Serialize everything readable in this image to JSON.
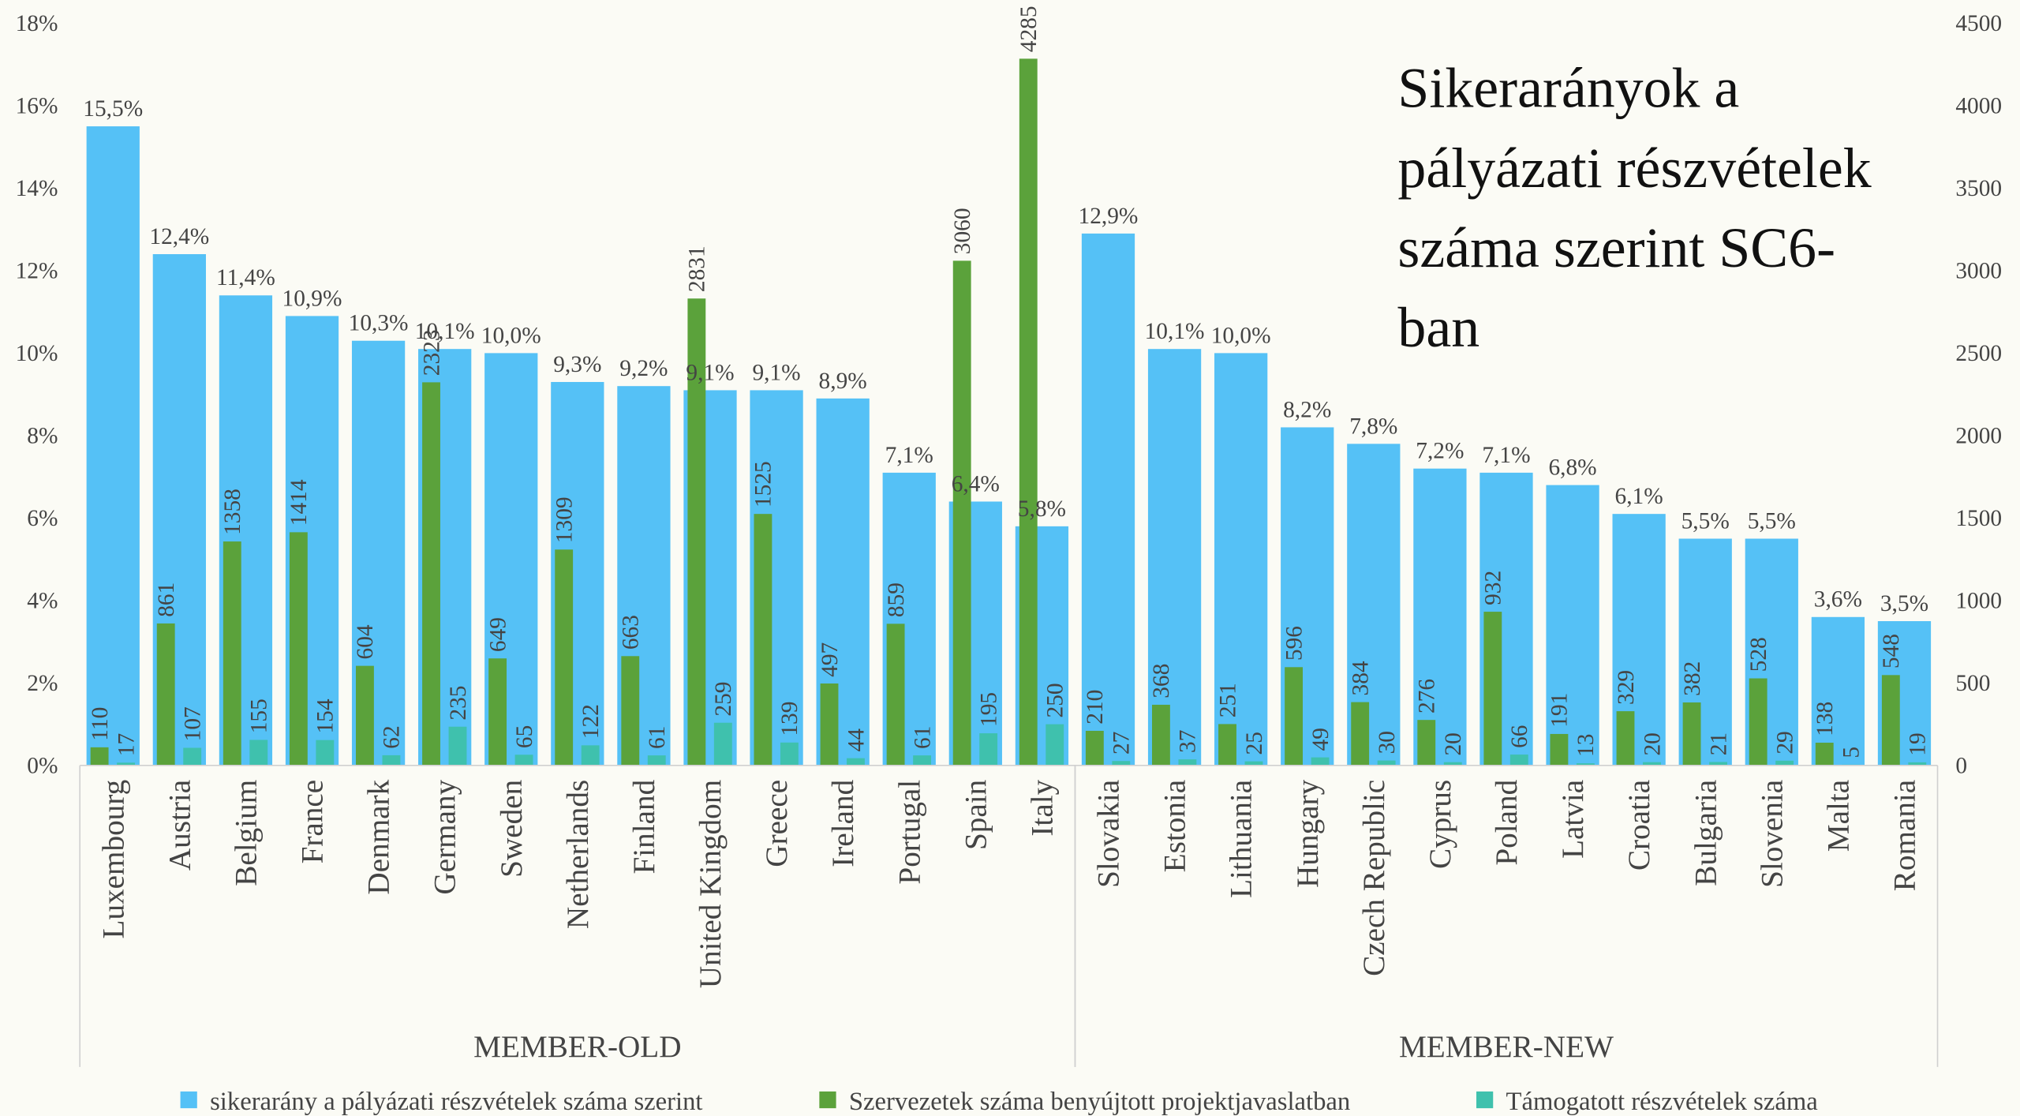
{
  "chart_data": {
    "type": "bar",
    "title": "Sikerarányok a pályázati részvételek száma szerint SC6-ban",
    "categories": [
      "Luxembourg",
      "Austria",
      "Belgium",
      "France",
      "Denmark",
      "Germany",
      "Sweden",
      "Netherlands",
      "Finland",
      "United Kingdom",
      "Greece",
      "Ireland",
      "Portugal",
      "Spain",
      "Italy",
      "Slovakia",
      "Estonia",
      "Lithuania",
      "Hungary",
      "Czech Republic",
      "Cyprus",
      "Poland",
      "Latvia",
      "Croatia",
      "Bulgaria",
      "Slovenia",
      "Malta",
      "Romania"
    ],
    "groups": [
      {
        "label": "MEMBER-OLD",
        "start": "Luxembourg",
        "end": "Italy"
      },
      {
        "label": "MEMBER-NEW",
        "start": "Slovakia",
        "end": "Romania"
      }
    ],
    "series": [
      {
        "name": "sikerarány a pályázati részvételek száma szerint",
        "color": "#55c1f6",
        "axis": "y",
        "values": [
          15.5,
          12.4,
          11.4,
          10.9,
          10.3,
          10.1,
          10.0,
          9.3,
          9.2,
          9.1,
          9.1,
          8.9,
          7.1,
          6.4,
          5.8,
          12.9,
          10.1,
          10.0,
          8.2,
          7.8,
          7.2,
          7.1,
          6.8,
          6.1,
          5.5,
          5.5,
          3.6,
          3.5
        ],
        "value_labels": [
          "15,5%",
          "12,4%",
          "11,4%",
          "10,9%",
          "10,3%",
          "10,1%",
          "10,0%",
          "9,3%",
          "9,2%",
          "9,1%",
          "9,1%",
          "8,9%",
          "7,1%",
          "6,4%",
          "5,8%",
          "12,9%",
          "10,1%",
          "10,0%",
          "8,2%",
          "7,8%",
          "7,2%",
          "7,1%",
          "6,8%",
          "6,1%",
          "5,5%",
          "5,5%",
          "3,6%",
          "3,5%"
        ]
      },
      {
        "name": "Szervezetek száma benyújtott projektjavaslatban",
        "color": "#5ba23b",
        "axis": "y2",
        "values": [
          110,
          861,
          1358,
          1414,
          604,
          2323,
          649,
          1309,
          663,
          2831,
          1525,
          497,
          859,
          3060,
          4285,
          210,
          368,
          251,
          596,
          384,
          276,
          932,
          191,
          329,
          382,
          528,
          138,
          548
        ]
      },
      {
        "name": "Támogatott részvételek száma",
        "color": "#3fc1ad",
        "axis": "y2",
        "values": [
          17,
          107,
          155,
          154,
          62,
          235,
          65,
          122,
          61,
          259,
          139,
          44,
          61,
          195,
          250,
          27,
          37,
          25,
          49,
          30,
          20,
          66,
          13,
          20,
          21,
          29,
          5,
          19
        ]
      }
    ],
    "ylim": [
      0,
      18
    ],
    "yticks": [
      {
        "value": 0,
        "label": "0%"
      },
      {
        "value": 2,
        "label": "2%"
      },
      {
        "value": 4,
        "label": "4%"
      },
      {
        "value": 6,
        "label": "6%"
      },
      {
        "value": 8,
        "label": "8%"
      },
      {
        "value": 10,
        "label": "10%"
      },
      {
        "value": 12,
        "label": "12%"
      },
      {
        "value": 14,
        "label": "14%"
      },
      {
        "value": 16,
        "label": "16%"
      },
      {
        "value": 18,
        "label": "18%"
      }
    ],
    "y2lim": [
      0,
      4500
    ],
    "y2ticks": [
      0,
      500,
      1000,
      1500,
      2000,
      2500,
      3000,
      3500,
      4000,
      4500
    ],
    "legend": "bottom"
  }
}
